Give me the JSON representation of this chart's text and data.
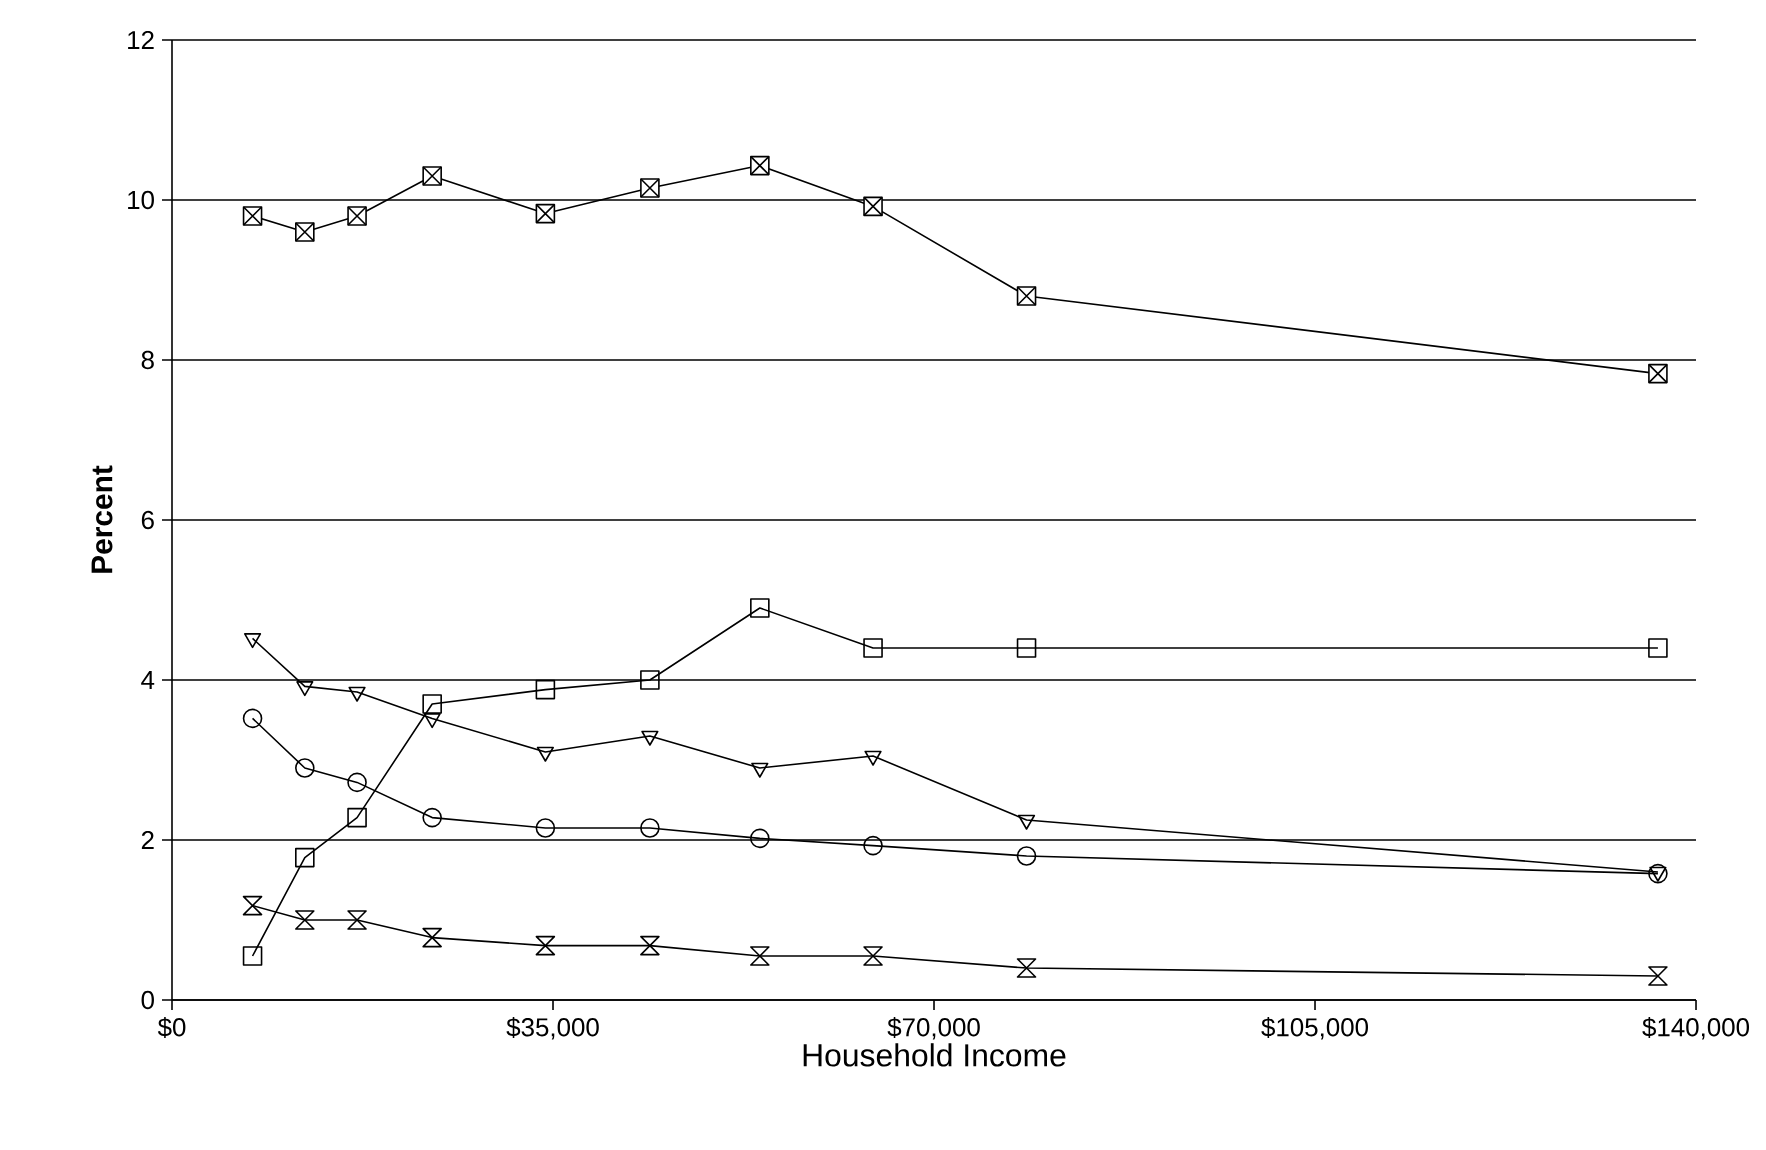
{
  "chart_data": {
    "type": "line",
    "xlabel": "Household Income",
    "ylabel": "Percent",
    "xlim": [
      0,
      140000
    ],
    "ylim": [
      0,
      12
    ],
    "xticks": [
      {
        "value": 0,
        "label": "$0"
      },
      {
        "value": 35000,
        "label": "$35,000"
      },
      {
        "value": 70000,
        "label": "$70,000"
      },
      {
        "value": 105000,
        "label": "$105,000"
      },
      {
        "value": 140000,
        "label": "$140,000"
      }
    ],
    "yticks": [
      0,
      2,
      4,
      6,
      8,
      10,
      12
    ],
    "grid": "y",
    "line_style": "solid",
    "x": [
      7400,
      12200,
      17000,
      23900,
      34300,
      43900,
      54000,
      64400,
      78500,
      136500
    ],
    "series": [
      {
        "color": "#000000",
        "marker": "square_x",
        "values": [
          9.8,
          9.6,
          9.8,
          10.3,
          9.83,
          10.15,
          10.43,
          9.92,
          8.8,
          7.83
        ]
      },
      {
        "color": "#000000",
        "marker": "square",
        "values": [
          0.55,
          1.78,
          2.28,
          3.7,
          3.88,
          4.0,
          4.9,
          4.4,
          4.4,
          4.4
        ]
      },
      {
        "color": "#000000",
        "marker": "triangle_down",
        "values": [
          4.52,
          3.92,
          3.85,
          3.52,
          3.1,
          3.3,
          2.9,
          3.05,
          2.25,
          1.6
        ]
      },
      {
        "color": "#000000",
        "marker": "circle",
        "values": [
          3.52,
          2.9,
          2.72,
          2.28,
          2.15,
          2.15,
          2.02,
          1.93,
          1.8,
          1.58
        ]
      },
      {
        "color": "#000000",
        "marker": "diamond",
        "values": [
          1.18,
          1.0,
          1.0,
          0.78,
          0.68,
          0.68,
          0.55,
          0.55,
          0.4,
          0.3
        ]
      }
    ]
  }
}
